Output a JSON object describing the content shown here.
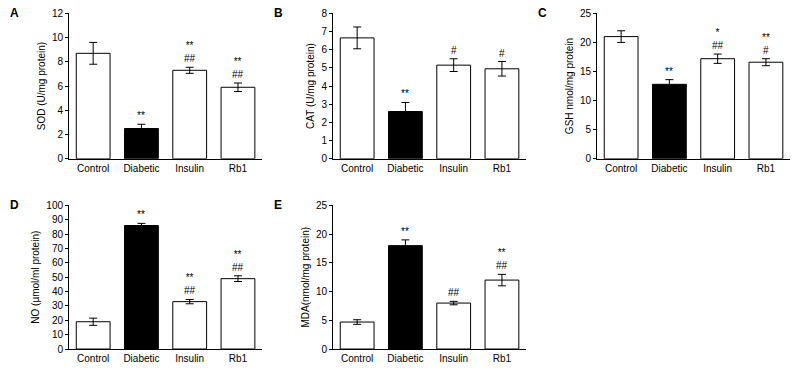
{
  "chart_data": [
    {
      "type": "bar",
      "title": "A",
      "ylabel": "SOD (U/mg protein)",
      "categories": [
        "Control",
        "Diabetic",
        "Insulin",
        "Rb1"
      ],
      "values": [
        8.7,
        2.5,
        7.3,
        5.9
      ],
      "errors": [
        0.9,
        0.35,
        0.25,
        0.35
      ],
      "colors": [
        "#ffffff",
        "#000000",
        "#ffffff",
        "#ffffff"
      ],
      "ylim": [
        0,
        12
      ],
      "yticks": [
        0,
        2,
        4,
        6,
        8,
        10,
        12
      ],
      "annotations": [
        {
          "category": "Diabetic",
          "text": [
            "**"
          ]
        },
        {
          "category": "Insulin",
          "text": [
            "**",
            "##"
          ]
        },
        {
          "category": "Rb1",
          "text": [
            "**",
            "##"
          ]
        }
      ]
    },
    {
      "type": "bar",
      "title": "B",
      "ylabel": "CAT (U/mg protein)",
      "categories": [
        "Control",
        "Diabetic",
        "Insulin",
        "Rb1"
      ],
      "values": [
        6.65,
        2.6,
        5.15,
        4.95
      ],
      "errors": [
        0.6,
        0.5,
        0.35,
        0.4
      ],
      "colors": [
        "#ffffff",
        "#000000",
        "#ffffff",
        "#ffffff"
      ],
      "ylim": [
        0,
        8
      ],
      "yticks": [
        0,
        1,
        2,
        3,
        4,
        5,
        6,
        7,
        8
      ],
      "annotations": [
        {
          "category": "Diabetic",
          "text": [
            "**"
          ]
        },
        {
          "category": "Insulin",
          "text": [
            "#"
          ]
        },
        {
          "category": "Rb1",
          "text": [
            "#"
          ]
        }
      ]
    },
    {
      "type": "bar",
      "title": "C",
      "ylabel": "GSH nmol/mg protein",
      "categories": [
        "Control",
        "Diabetic",
        "Insulin",
        "Rb1"
      ],
      "values": [
        21,
        12.8,
        17.2,
        16.6
      ],
      "errors": [
        1.0,
        0.8,
        0.8,
        0.6
      ],
      "colors": [
        "#ffffff",
        "#000000",
        "#ffffff",
        "#ffffff"
      ],
      "ylim": [
        0,
        25
      ],
      "yticks": [
        0,
        5,
        10,
        15,
        20,
        25
      ],
      "annotations": [
        {
          "category": "Diabetic",
          "text": [
            "**"
          ]
        },
        {
          "category": "Insulin",
          "text": [
            "*",
            "##"
          ]
        },
        {
          "category": "Rb1",
          "text": [
            "**",
            "#"
          ]
        }
      ]
    },
    {
      "type": "bar",
      "title": "D",
      "ylabel": "NO (µmol/ml protein)",
      "categories": [
        "Control",
        "Diabetic",
        "Insulin",
        "Rb1"
      ],
      "values": [
        19,
        86,
        33,
        49
      ],
      "errors": [
        2.5,
        1.5,
        1.5,
        2
      ],
      "colors": [
        "#ffffff",
        "#000000",
        "#ffffff",
        "#ffffff"
      ],
      "ylim": [
        0,
        100
      ],
      "yticks": [
        0,
        10,
        20,
        30,
        40,
        50,
        60,
        70,
        80,
        90,
        100
      ],
      "annotations": [
        {
          "category": "Diabetic",
          "text": [
            "**"
          ]
        },
        {
          "category": "Insulin",
          "text": [
            "**",
            "##"
          ]
        },
        {
          "category": "Rb1",
          "text": [
            "**",
            "##"
          ]
        }
      ]
    },
    {
      "type": "bar",
      "title": "E",
      "ylabel": "MDA(nmol/mg protein)",
      "categories": [
        "Control",
        "Diabetic",
        "Insulin",
        "Rb1"
      ],
      "values": [
        4.7,
        18,
        8,
        12
      ],
      "errors": [
        0.4,
        1.0,
        0.3,
        1.0
      ],
      "colors": [
        "#ffffff",
        "#000000",
        "#ffffff",
        "#ffffff"
      ],
      "ylim": [
        0,
        25
      ],
      "yticks": [
        0,
        5,
        10,
        15,
        20,
        25
      ],
      "annotations": [
        {
          "category": "Diabetic",
          "text": [
            "**"
          ]
        },
        {
          "category": "Insulin",
          "text": [
            "##"
          ]
        },
        {
          "category": "Rb1",
          "text": [
            "**",
            "##"
          ]
        }
      ]
    }
  ]
}
